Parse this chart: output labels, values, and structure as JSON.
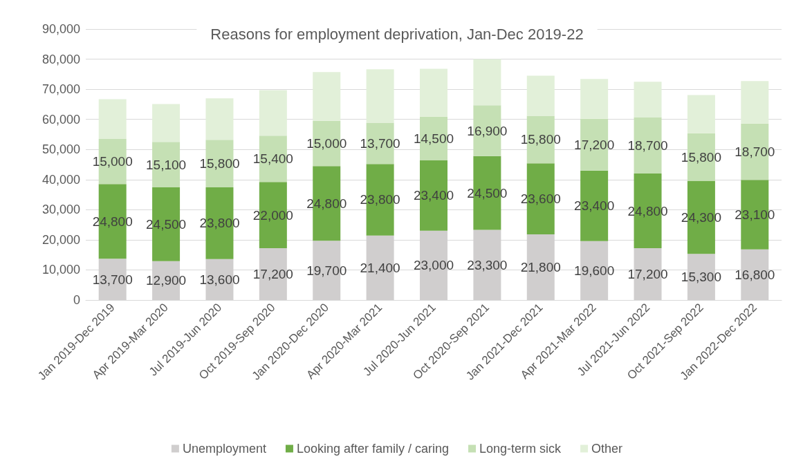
{
  "chart_data": {
    "type": "bar",
    "title": "Reasons for employment deprivation, Jan-Dec 2019-22",
    "stacked": true,
    "categories": [
      "Jan 2019-Dec 2019",
      "Apr 2019-Mar 2020",
      "Jul 2019-Jun 2020",
      "Oct 2019-Sep 2020",
      "Jan 2020-Dec 2020",
      "Apr 2020-Mar 2021",
      "Jul 2020-Jun 2021",
      "Oct 2020-Sep 2021",
      "Jan 2021-Dec 2021",
      "Apr 2021-Mar 2022",
      "Jul 2021-Jun 2022",
      "Oct 2021-Sep 2022",
      "Jan 2022-Dec 2022"
    ],
    "series": [
      {
        "name": "Unemployment",
        "color": "#d0cece",
        "values": [
          13700,
          12900,
          13600,
          17200,
          19700,
          21400,
          23000,
          23300,
          21800,
          19600,
          17200,
          15300,
          16800
        ],
        "value_labels": [
          "13,700",
          "12,900",
          "13,600",
          "17,200",
          "19,700",
          "21,400",
          "23,000",
          "23,300",
          "21,800",
          "19,600",
          "17,200",
          "15,300",
          "16,800"
        ]
      },
      {
        "name": "Looking after family / caring",
        "color": "#70ad47",
        "values": [
          24800,
          24500,
          23800,
          22000,
          24800,
          23800,
          23400,
          24500,
          23600,
          23400,
          24800,
          24300,
          23100
        ],
        "value_labels": [
          "24,800",
          "24,500",
          "23,800",
          "22,000",
          "24,800",
          "23,800",
          "23,400",
          "24,500",
          "23,600",
          "23,400",
          "24,800",
          "24,300",
          "23,100"
        ]
      },
      {
        "name": "Long-term sick",
        "color": "#c5e0b4",
        "values": [
          15000,
          15100,
          15800,
          15400,
          15000,
          13700,
          14500,
          16900,
          15800,
          17200,
          18700,
          15800,
          18700
        ],
        "value_labels": [
          "15,000",
          "15,100",
          "15,800",
          "15,400",
          "15,000",
          "13,700",
          "14,500",
          "16,900",
          "15,800",
          "17,200",
          "18,700",
          "15,800",
          "18,700"
        ]
      },
      {
        "name": "Other",
        "color": "#e2f0d9",
        "values": [
          13200,
          12600,
          13800,
          15100,
          16200,
          17700,
          15900,
          15300,
          13300,
          13200,
          11800,
          12700,
          14100
        ]
      }
    ],
    "ylim": [
      0,
      90000
    ],
    "yticks": [
      {
        "value": 0,
        "label": "0"
      },
      {
        "value": 10000,
        "label": "10,000"
      },
      {
        "value": 20000,
        "label": "20,000"
      },
      {
        "value": 30000,
        "label": "30,000"
      },
      {
        "value": 40000,
        "label": "40,000"
      },
      {
        "value": 50000,
        "label": "50,000"
      },
      {
        "value": 60000,
        "label": "60,000"
      },
      {
        "value": 70000,
        "label": "70,000"
      },
      {
        "value": 80000,
        "label": "80,000"
      },
      {
        "value": 90000,
        "label": "90,000"
      }
    ],
    "grid": "y",
    "legend": "bottom"
  }
}
